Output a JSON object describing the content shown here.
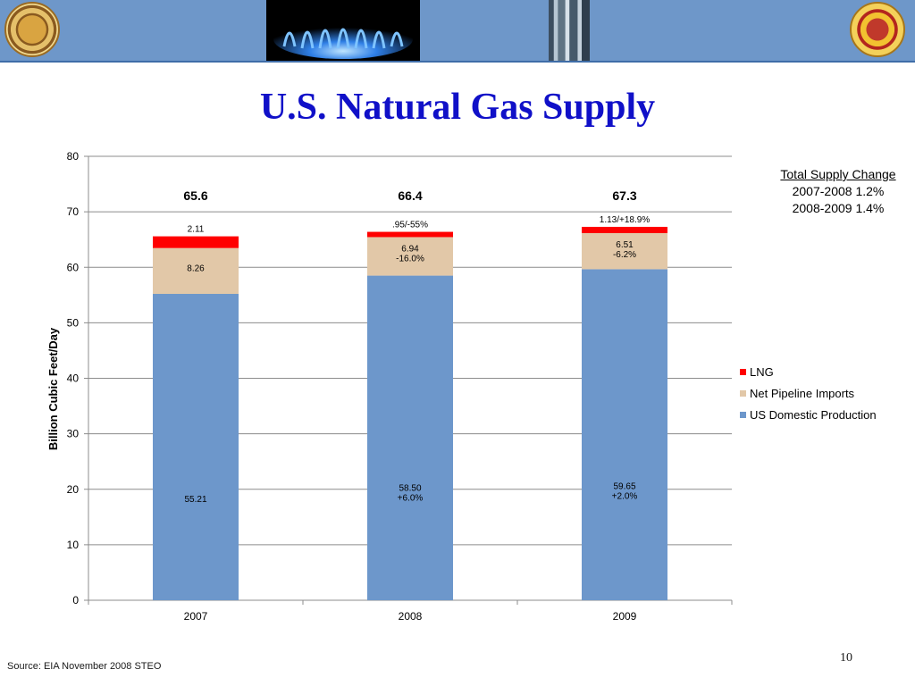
{
  "title": "U.S. Natural Gas Supply",
  "source": "Source: EIA November 2008 STEO",
  "page_number": "10",
  "supply_note": {
    "heading": "Total Supply Change",
    "lines": [
      "2007-2008 1.2%",
      "2008-2009 1.4%"
    ]
  },
  "banner": {
    "color": "#6e97c9",
    "images": [
      "california-energy-commission-seal",
      "gas-flame-photo",
      "gas-plant-photo",
      "state-seal"
    ]
  },
  "chart_data": {
    "type": "bar",
    "stacked": true,
    "categories": [
      "2007",
      "2008",
      "2009"
    ],
    "ylabel": "Billion Cubic Feet/Day",
    "xlabel": "",
    "ylim": [
      0,
      80
    ],
    "yticks": [
      0,
      10,
      20,
      30,
      40,
      50,
      60,
      70,
      80
    ],
    "grid": true,
    "legend_position": "right",
    "totals": [
      "65.6",
      "66.4",
      "67.3"
    ],
    "series": [
      {
        "name": "US Domestic Production",
        "color": "#6d97cb",
        "values": [
          55.21,
          58.5,
          59.65
        ],
        "labels": [
          [
            "55.21"
          ],
          [
            "58.50",
            "+6.0%"
          ],
          [
            "59.65",
            "+2.0%"
          ]
        ]
      },
      {
        "name": "Net Pipeline Imports",
        "color": "#e2c8a8",
        "values": [
          8.26,
          6.94,
          6.51
        ],
        "labels": [
          [
            "8.26"
          ],
          [
            "6.94",
            "-16.0%"
          ],
          [
            "6.51",
            "-6.2%"
          ]
        ]
      },
      {
        "name": "LNG",
        "color": "#ff0000",
        "values": [
          2.11,
          0.95,
          1.13
        ],
        "labels": [
          [
            "2.11"
          ],
          [
            ".95/-55%"
          ],
          [
            "1.13/+18.9%"
          ]
        ]
      }
    ]
  }
}
